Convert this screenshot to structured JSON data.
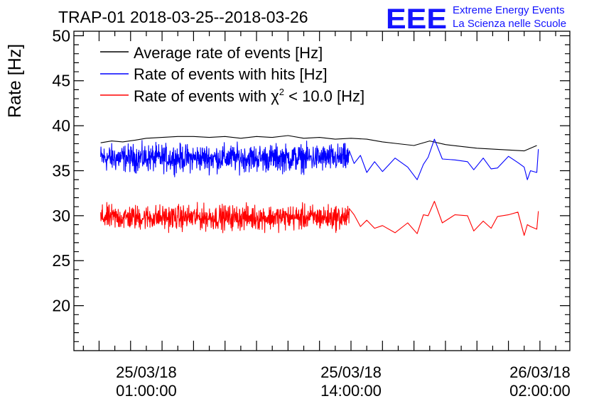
{
  "chart_data": {
    "type": "line",
    "title": "TRAP-01 2018-03-25--2018-03-26",
    "logo": {
      "text": "EEE",
      "line1": "Extreme Energy Events",
      "line2": "La Scienza nelle Scuole",
      "color": "#1414ff"
    },
    "ylabel": "Rate [Hz]",
    "xlabel": "",
    "ylim": [
      15,
      50.5
    ],
    "yticks": [
      20,
      25,
      30,
      35,
      40,
      45,
      50
    ],
    "xlim_hours": [
      -3.6,
      27.9
    ],
    "xticks": [
      {
        "hour": 1,
        "date": "25/03/18",
        "time": "01:00:00"
      },
      {
        "hour": 14,
        "date": "25/03/18",
        "time": "14:00:00"
      },
      {
        "hour": 26,
        "date": "26/03/18",
        "time": "02:00:00"
      }
    ],
    "grid": false,
    "legend_position": "top-left",
    "series": [
      {
        "name": "Average rate of events [Hz]",
        "color": "#000000",
        "kind": "smooth",
        "x": [
          -1.9,
          -1.2,
          -0.5,
          0.3,
          1.0,
          2.0,
          3.0,
          4.0,
          5.0,
          6.0,
          7.0,
          8.0,
          9.0,
          10.0,
          11.0,
          12.0,
          13.0,
          14.0,
          15.0,
          16.0,
          17.0,
          18.0,
          19.0,
          20.0,
          21.0,
          22.0,
          23.0,
          24.0,
          25.0,
          25.8
        ],
        "y": [
          38.1,
          38.3,
          38.2,
          38.4,
          38.6,
          38.7,
          38.8,
          38.8,
          38.7,
          38.8,
          38.6,
          38.8,
          38.7,
          38.9,
          38.6,
          38.7,
          38.5,
          38.6,
          38.5,
          38.2,
          38.0,
          37.8,
          38.3,
          37.9,
          37.7,
          37.5,
          37.4,
          37.3,
          37.2,
          37.8
        ]
      },
      {
        "name": "Rate of events with hits [Hz]",
        "color": "#0000ff",
        "kind": "noisy",
        "dense_from": -1.9,
        "dense_to": 13.9,
        "mean": 36.4,
        "amplitude": 2.2,
        "x": [
          14.2,
          14.6,
          15.0,
          15.5,
          16.0,
          16.8,
          17.6,
          18.2,
          18.6,
          18.9,
          19.3,
          19.8,
          20.6,
          21.4,
          21.8,
          22.4,
          22.9,
          23.3,
          24.0,
          24.6,
          25.0,
          25.2,
          25.4,
          25.8,
          25.9
        ],
        "y": [
          35.8,
          36.7,
          34.8,
          36.0,
          34.9,
          36.4,
          35.4,
          34.0,
          35.7,
          36.5,
          38.5,
          36.3,
          36.2,
          36.0,
          35.1,
          36.4,
          35.2,
          35.3,
          36.6,
          35.9,
          35.4,
          34.0,
          35.0,
          34.8,
          37.4
        ]
      },
      {
        "name": "Rate of events with χ² < 10.0 [Hz]",
        "legend_prefix": "Rate of events with ",
        "legend_chi": "χ",
        "legend_sup": "2",
        "legend_suffix": " < 10.0 [Hz]",
        "color": "#ff0000",
        "kind": "noisy",
        "dense_from": -1.9,
        "dense_to": 13.9,
        "mean": 29.8,
        "amplitude": 2.0,
        "x": [
          14.2,
          14.6,
          15.0,
          15.5,
          16.0,
          16.8,
          17.6,
          18.2,
          18.6,
          18.9,
          19.3,
          19.8,
          20.6,
          21.4,
          21.8,
          22.4,
          22.9,
          23.3,
          24.0,
          24.6,
          25.0,
          25.2,
          25.4,
          25.8,
          25.9
        ],
        "y": [
          30.1,
          28.8,
          29.5,
          28.6,
          28.9,
          28.1,
          29.2,
          28.0,
          30.1,
          30.0,
          31.6,
          29.2,
          30.1,
          30.0,
          28.3,
          29.4,
          28.6,
          29.9,
          30.1,
          30.4,
          27.8,
          29.0,
          28.8,
          28.5,
          30.5
        ]
      }
    ]
  }
}
